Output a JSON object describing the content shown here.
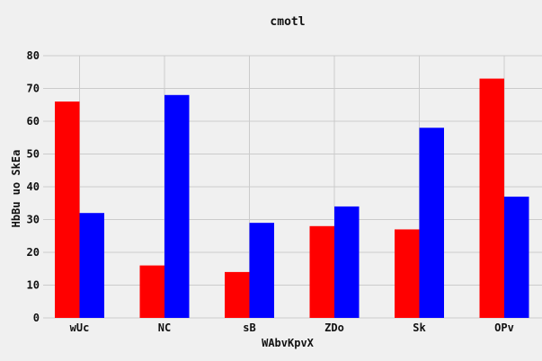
{
  "chart_data": {
    "type": "bar",
    "title": "cmotl",
    "xlabel": "WAbvKpvX",
    "ylabel": "HbBu uo SkEa",
    "categories": [
      "wUc",
      "NC",
      "sB",
      "ZDo",
      "Sk",
      "OPv"
    ],
    "series": [
      {
        "values": [
          66,
          16,
          14,
          28,
          27,
          73
        ],
        "color": "#ff0000"
      },
      {
        "values": [
          32,
          68,
          29,
          34,
          58,
          37
        ],
        "color": "#0000ff"
      }
    ],
    "ylim": [
      0,
      80
    ],
    "yticks": [
      0,
      10,
      20,
      30,
      40,
      50,
      60,
      70,
      80
    ],
    "grid": true,
    "legend": "none"
  }
}
